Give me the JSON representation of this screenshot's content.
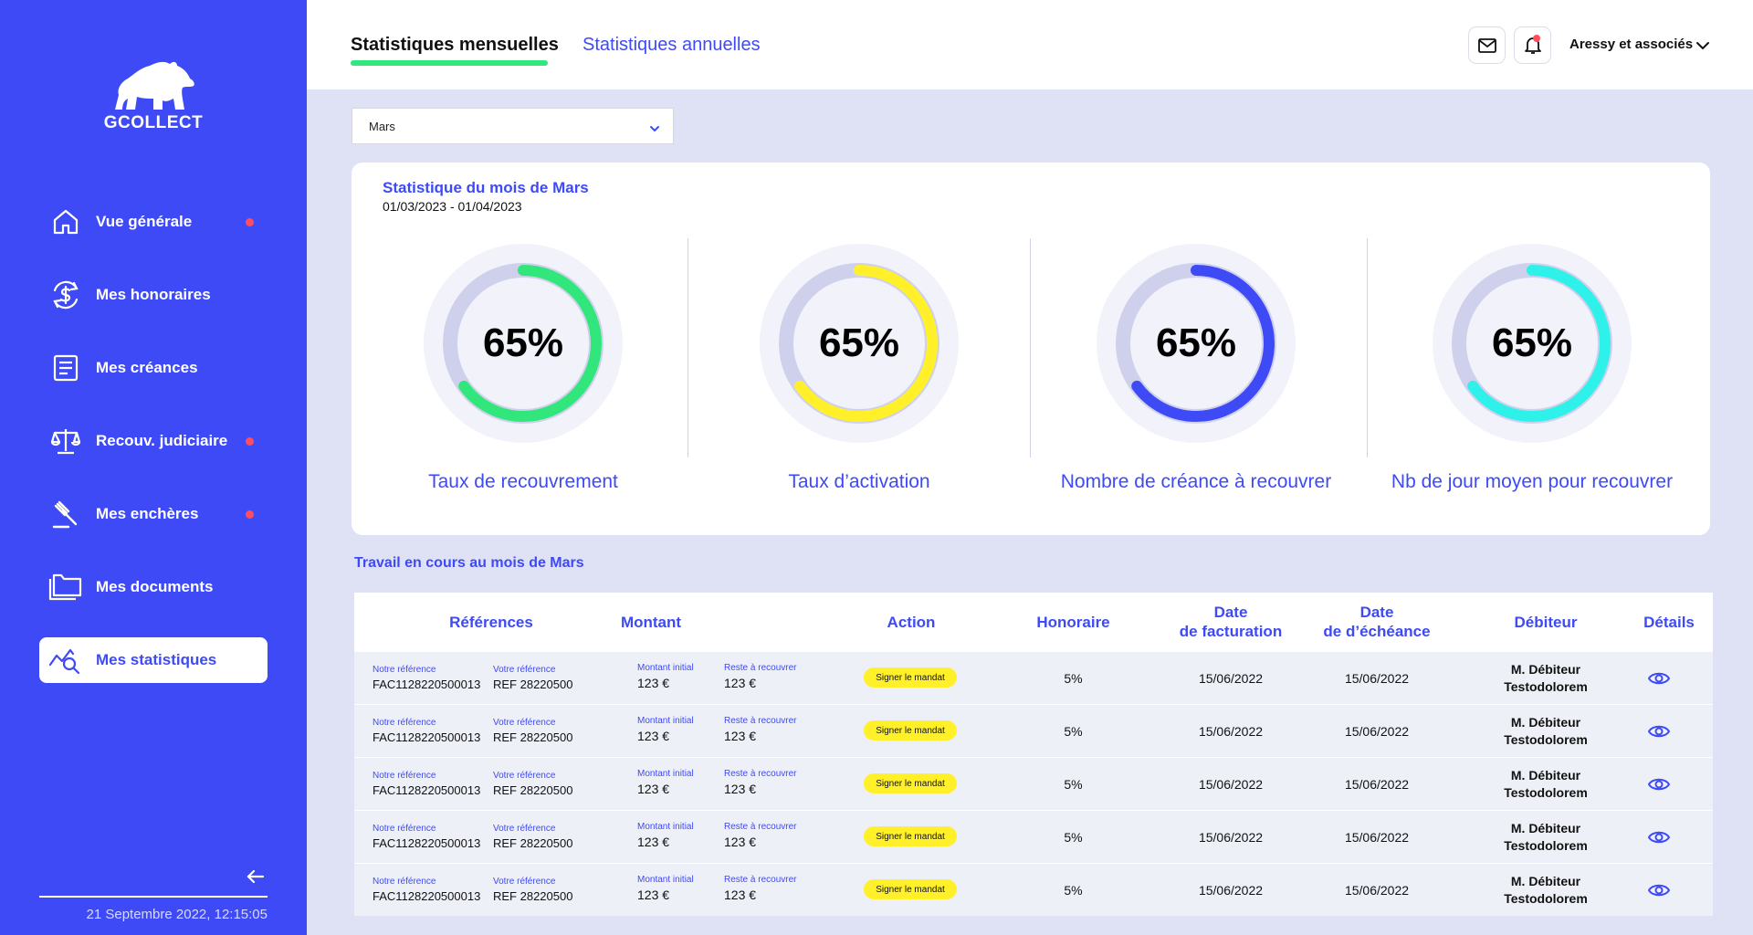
{
  "brand": {
    "name": "GCOLLECT"
  },
  "sidebar": {
    "items": [
      {
        "label": "Vue générale",
        "icon": "home-icon",
        "dot": true
      },
      {
        "label": "Mes honoraires",
        "icon": "dollar-cycle-icon",
        "dot": false
      },
      {
        "label": "Mes créances",
        "icon": "document-icon",
        "dot": false
      },
      {
        "label": "Recouv. judiciaire",
        "icon": "scales-icon",
        "dot": true
      },
      {
        "label": "Mes enchères",
        "icon": "gavel-icon",
        "dot": true
      },
      {
        "label": "Mes documents",
        "icon": "folder-icon",
        "dot": false
      },
      {
        "label": "Mes statistiques",
        "icon": "chart-search-icon",
        "dot": false,
        "active": true
      }
    ],
    "datetime": "21 Septembre 2022, 12:15:05"
  },
  "header": {
    "tabs": [
      {
        "label": "Statistiques mensuelles",
        "active": true
      },
      {
        "label": "Statistiques annuelles",
        "active": false
      }
    ],
    "company": "Aressy et associés"
  },
  "month_select": {
    "value": "Mars"
  },
  "stats": {
    "title": "Statistique du mois de Mars",
    "range": "01/03/2023 - 01/04/2023",
    "gauges": [
      {
        "value_label": "65%",
        "value": 0.65,
        "label": "Taux de recouvrement",
        "color": "#31e67a"
      },
      {
        "value_label": "65%",
        "value": 0.65,
        "label": "Taux d’activation",
        "color": "#fff02a"
      },
      {
        "value_label": "65%",
        "value": 0.65,
        "label": "Nombre de créance à recouvrer",
        "color": "#3e4af5"
      },
      {
        "value_label": "65%",
        "value": 0.65,
        "label": "Nb de jour moyen pour recouvrer",
        "color": "#2ef2ea"
      }
    ]
  },
  "work": {
    "title": "Travail en cours au mois de Mars",
    "headers": {
      "references": "Références",
      "montant": "Montant",
      "action": "Action",
      "honoraire": "Honoraire",
      "date_facturation_1": "Date",
      "date_facturation_2": "de facturation",
      "date_echeance_1": "Date",
      "date_echeance_2": "de d’échéance",
      "debiteur": "Débiteur",
      "details": "Détails"
    },
    "labels": {
      "notre_ref": "Notre référence",
      "votre_ref": "Votre référence",
      "montant_initial": "Montant initial",
      "reste": "Reste à recouvrer"
    },
    "rows": [
      {
        "notre_ref": "FAC1128220500013",
        "votre_ref": "REF 28220500",
        "montant_initial": "123 €",
        "reste": "123 €",
        "action": "Signer le mandat",
        "honoraire": "5%",
        "date_facturation": "15/06/2022",
        "date_echeance": "15/06/2022",
        "debiteur_1": "M. Débiteur",
        "debiteur_2": "Testodolorem"
      },
      {
        "notre_ref": "FAC1128220500013",
        "votre_ref": "REF 28220500",
        "montant_initial": "123 €",
        "reste": "123 €",
        "action": "Signer le mandat",
        "honoraire": "5%",
        "date_facturation": "15/06/2022",
        "date_echeance": "15/06/2022",
        "debiteur_1": "M. Débiteur",
        "debiteur_2": "Testodolorem"
      },
      {
        "notre_ref": "FAC1128220500013",
        "votre_ref": "REF 28220500",
        "montant_initial": "123 €",
        "reste": "123 €",
        "action": "Signer le mandat",
        "honoraire": "5%",
        "date_facturation": "15/06/2022",
        "date_echeance": "15/06/2022",
        "debiteur_1": "M. Débiteur",
        "debiteur_2": "Testodolorem"
      },
      {
        "notre_ref": "FAC1128220500013",
        "votre_ref": "REF 28220500",
        "montant_initial": "123 €",
        "reste": "123 €",
        "action": "Signer le mandat",
        "honoraire": "5%",
        "date_facturation": "15/06/2022",
        "date_echeance": "15/06/2022",
        "debiteur_1": "M. Débiteur",
        "debiteur_2": "Testodolorem"
      },
      {
        "notre_ref": "FAC1128220500013",
        "votre_ref": "REF 28220500",
        "montant_initial": "123 €",
        "reste": "123 €",
        "action": "Signer le mandat",
        "honoraire": "5%",
        "date_facturation": "15/06/2022",
        "date_echeance": "15/06/2022",
        "debiteur_1": "M. Débiteur",
        "debiteur_2": "Testodolorem"
      }
    ]
  }
}
